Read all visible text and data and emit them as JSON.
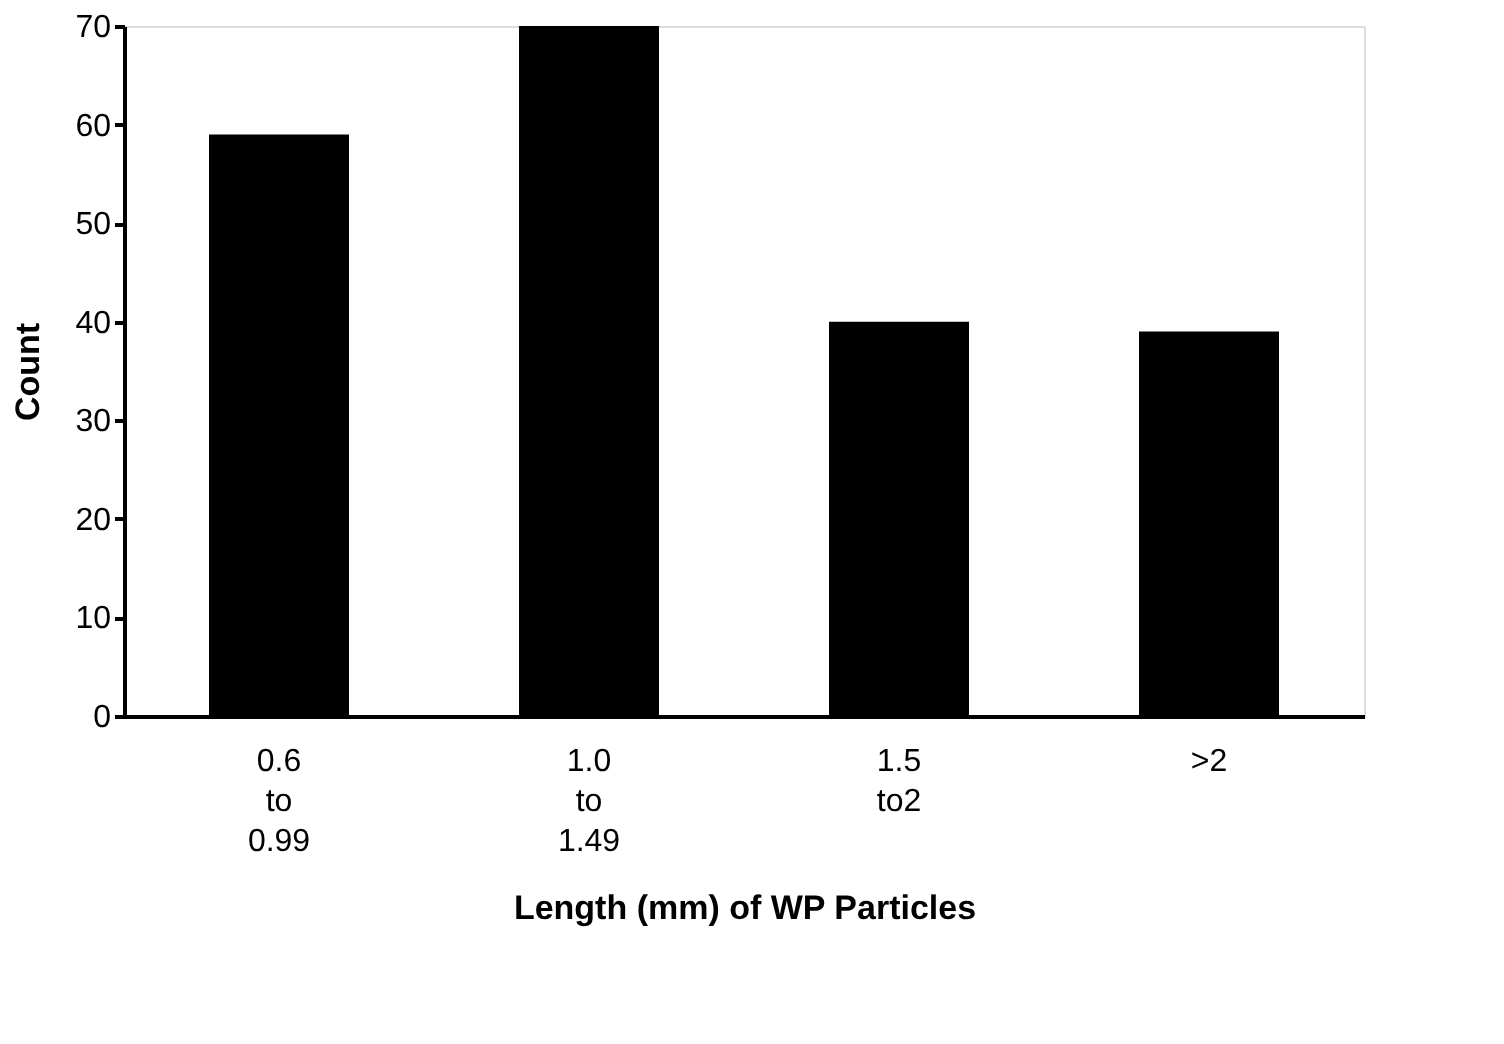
{
  "chart_data": {
    "type": "bar",
    "categories": [
      "0.6\nto\n0.99",
      "1.0\nto\n1.49",
      "1.5\nto2",
      ">2"
    ],
    "values": [
      59,
      70,
      40,
      39
    ],
    "color": "#000000",
    "xlabel": "Length (mm) of WP Particles",
    "ylabel": "Count",
    "ylim": [
      0,
      70
    ],
    "yticks": [
      0,
      10,
      20,
      30,
      40,
      50,
      60,
      70
    ],
    "grid": false
  }
}
